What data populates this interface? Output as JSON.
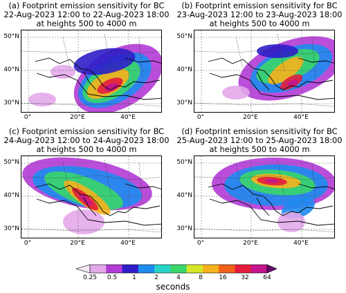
{
  "panels": [
    {
      "title_line1": "(a) Footprint emission sensitivity for BC",
      "title_line2": "22-Aug-2023 12:00 to 22-Aug-2023 18:00",
      "title_line3": "at heights 500 to 4000 m"
    },
    {
      "title_line1": "(b) Footprint emission sensitivity for BC",
      "title_line2": "23-Aug-2023 12:00 to 23-Aug-2023 18:00",
      "title_line3": "at heights 500 to 4000 m"
    },
    {
      "title_line1": "(c) Footprint emission sensitivity for BC",
      "title_line2": "24-Aug-2023 12:00 to 24-Aug-2023 18:00",
      "title_line3": "at heights 500 to 4000 m"
    },
    {
      "title_line1": "(d) Footprint emission sensitivity for BC",
      "title_line2": "25-Aug-2023 12:00 to 25-Aug-2023 18:00",
      "title_line3": "at heights 500 to 4000 m"
    }
  ],
  "axes": {
    "lat_labels": [
      "50°N",
      "40°N",
      "30°N"
    ],
    "lon_labels": [
      "0°",
      "20°E",
      "40°E"
    ]
  },
  "colorbar": {
    "label": "seconds",
    "ticks": [
      "0.25",
      "0.5",
      "1",
      "2",
      "4",
      "8",
      "16",
      "32",
      "64"
    ],
    "colors": [
      "#f6e8f6",
      "#e3a9ea",
      "#b23bd6",
      "#2f1ec8",
      "#1e8cf0",
      "#2ad3c8",
      "#3ad66a",
      "#d8e62a",
      "#f6b21c",
      "#f2621a",
      "#e41c3c",
      "#c2158e",
      "#6a0a6e"
    ]
  },
  "chart_data": {
    "type": "heatmap",
    "description_units": "footprint emission sensitivity (seconds), log scale",
    "colorbar_range": [
      0.25,
      64
    ],
    "colorbar_scale": "log2",
    "extend": "both",
    "lat_range": [
      26,
      53
    ],
    "lon_range": [
      -5,
      50
    ],
    "panels": [
      {
        "id": "a",
        "peak_region": "Aegean Sea / western Turkey",
        "peak_approx_seconds": 32
      },
      {
        "id": "b",
        "peak_region": "Aegean Sea / western Turkey",
        "peak_approx_seconds": 32
      },
      {
        "id": "c",
        "peak_region": "Adriatic / western Balkans",
        "peak_approx_seconds": 32
      },
      {
        "id": "d",
        "peak_region": "Balkans / Black Sea coast",
        "peak_approx_seconds": 32
      }
    ]
  }
}
